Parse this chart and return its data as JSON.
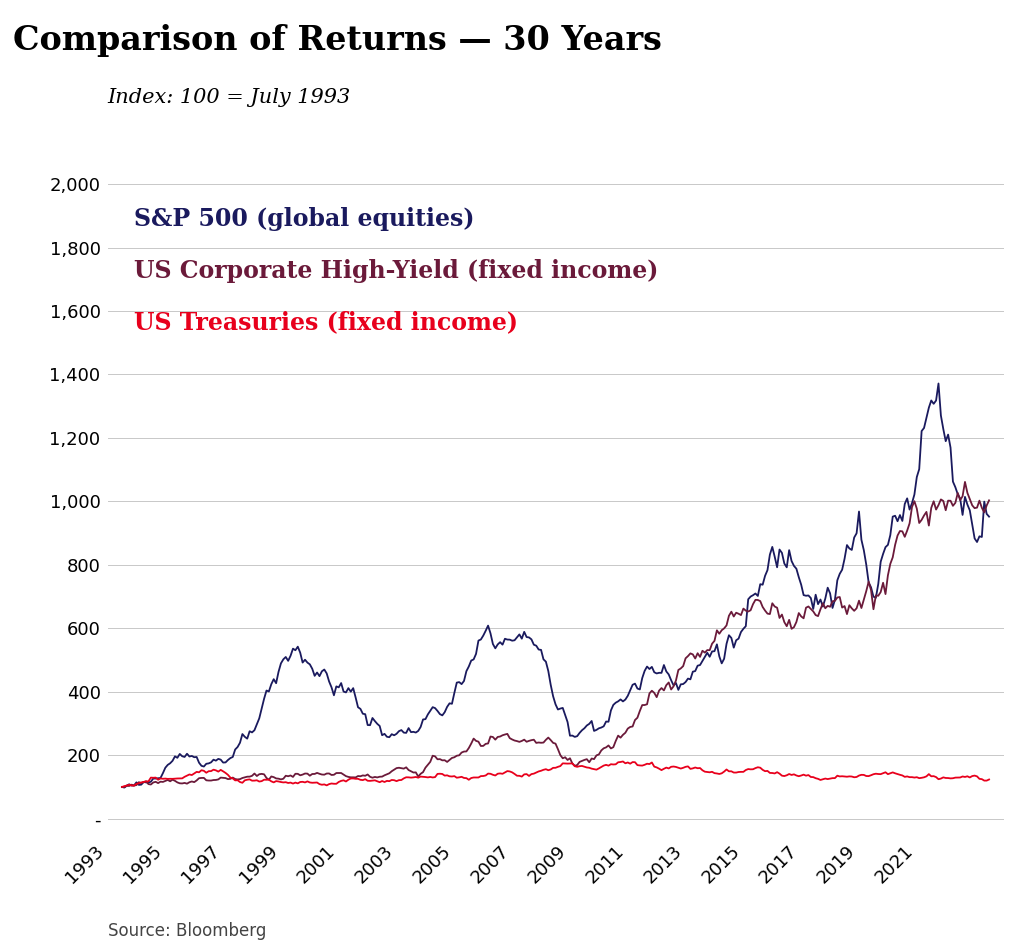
{
  "title": "Comparison of Returns — 30 Years",
  "subtitle": "Index: 100 = July 1993",
  "source": "Source: Bloomberg",
  "title_bg_color": "#d4d4d4",
  "bg_color": "#ffffff",
  "grid_color": "#c8c8c8",
  "sp500_color": "#1a1a5e",
  "hy_color": "#6b1a3a",
  "treasury_color": "#e8001c",
  "sp500_label": "S&P 500 (global equities)",
  "hy_label": "US Corporate High-Yield (fixed income)",
  "treasury_label": "US Treasuries (fixed income)",
  "ylim": [
    -60,
    2100
  ],
  "yticks": [
    0,
    200,
    400,
    600,
    800,
    1000,
    1200,
    1400,
    1600,
    1800,
    2000
  ],
  "xtick_years": [
    1993,
    1995,
    1997,
    1999,
    2001,
    2003,
    2005,
    2007,
    2009,
    2011,
    2013,
    2015,
    2017,
    2019,
    2021
  ],
  "xtick_labels": [
    "1993",
    "1995",
    "1997",
    "1999",
    "2001",
    "2003",
    "2005",
    "2007",
    "2009",
    "2011",
    "2013",
    "2015",
    "2017",
    "2019",
    "2021"
  ],
  "title_fontsize": 24,
  "subtitle_fontsize": 15,
  "legend_fontsize": 17,
  "axis_fontsize": 13,
  "source_fontsize": 12
}
